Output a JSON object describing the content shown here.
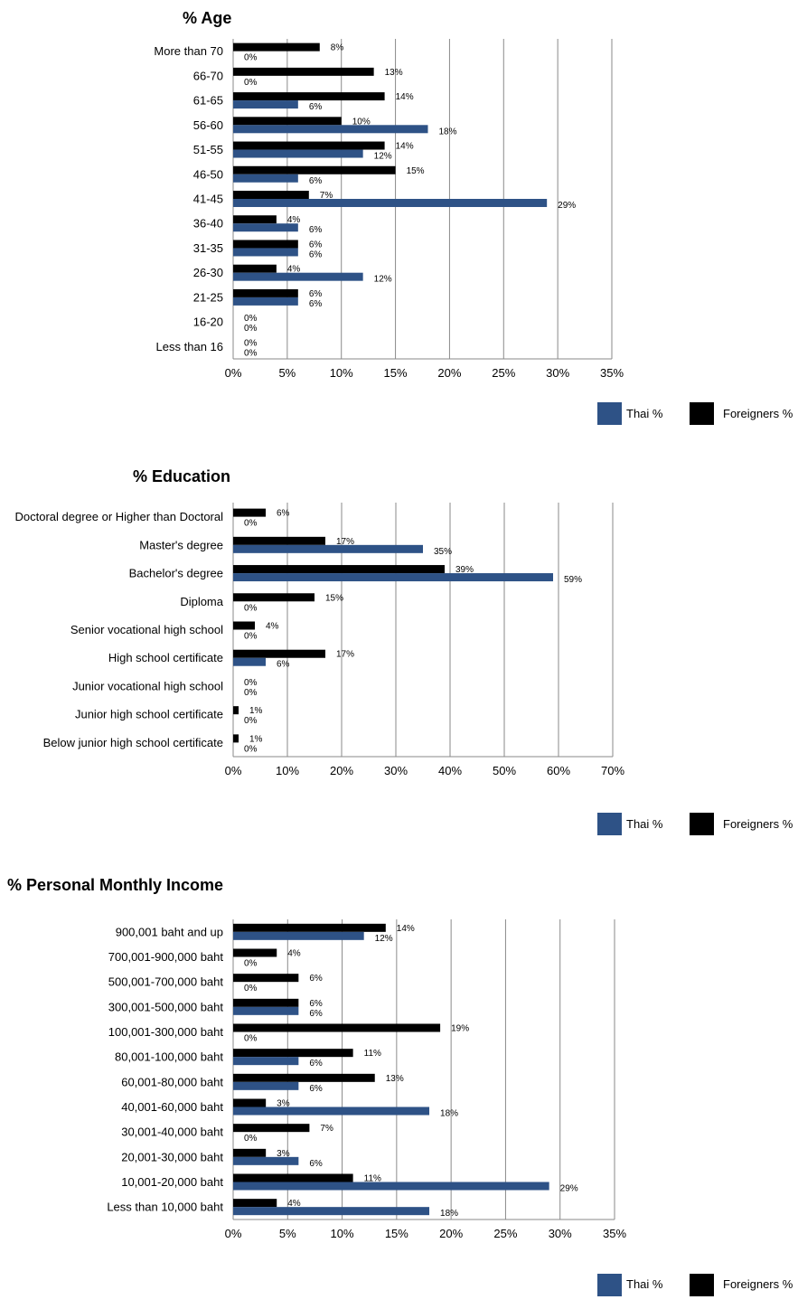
{
  "colors": {
    "thai": "#2e5286",
    "foreigners": "#000000",
    "grid": "#8a8a8a"
  },
  "legend": {
    "thai": "Thai %",
    "foreigners": "Foreigners %"
  },
  "chart_data": [
    {
      "type": "bar",
      "orientation": "horizontal",
      "title": "% Age",
      "categories": [
        "More than 70",
        "66-70",
        "61-65",
        "56-60",
        "51-55",
        "46-50",
        "41-45",
        "36-40",
        "31-35",
        "26-30",
        "21-25",
        "16-20",
        "Less than 16"
      ],
      "series": [
        {
          "name": "Foreigners %",
          "values": [
            8,
            13,
            14,
            10,
            14,
            15,
            7,
            4,
            6,
            4,
            6,
            0,
            0
          ]
        },
        {
          "name": "Thai %",
          "values": [
            0,
            0,
            6,
            18,
            12,
            6,
            29,
            6,
            6,
            12,
            6,
            0,
            0
          ]
        }
      ],
      "xlim": [
        0,
        35
      ],
      "xticks": [
        "0%",
        "5%",
        "10%",
        "15%",
        "20%",
        "25%",
        "30%",
        "35%"
      ],
      "value_format": "%",
      "legend_position": "bottom-right",
      "grid": true
    },
    {
      "type": "bar",
      "orientation": "horizontal",
      "title": "% Education",
      "categories": [
        "Doctoral degree or Higher than Doctoral",
        "Master's degree",
        "Bachelor's degree",
        "Diploma",
        "Senior vocational high school",
        "High school certificate",
        "Junior vocational high school",
        "Junior high school certificate",
        "Below junior high school certificate"
      ],
      "series": [
        {
          "name": "Foreigners %",
          "values": [
            6,
            17,
            39,
            15,
            4,
            17,
            0,
            1,
            1
          ]
        },
        {
          "name": "Thai %",
          "values": [
            0,
            35,
            59,
            0,
            0,
            6,
            0,
            0,
            0
          ]
        }
      ],
      "xlim": [
        0,
        70
      ],
      "xticks": [
        "0%",
        "10%",
        "20%",
        "30%",
        "40%",
        "50%",
        "60%",
        "70%"
      ],
      "value_format": "%",
      "legend_position": "bottom-right",
      "grid": true
    },
    {
      "type": "bar",
      "orientation": "horizontal",
      "title": "% Personal Monthly Income",
      "categories": [
        "900,001 baht and up",
        "700,001-900,000 baht",
        "500,001-700,000 baht",
        "300,001-500,000 baht",
        "100,001-300,000 baht",
        "80,001-100,000 baht",
        "60,001-80,000 baht",
        "40,001-60,000 baht",
        "30,001-40,000 baht",
        "20,001-30,000 baht",
        "10,001-20,000 baht",
        "Less than 10,000 baht"
      ],
      "series": [
        {
          "name": "Foreigners %",
          "values": [
            14,
            4,
            6,
            6,
            19,
            11,
            13,
            3,
            7,
            3,
            11,
            4
          ]
        },
        {
          "name": "Thai %",
          "values": [
            12,
            0,
            0,
            6,
            0,
            6,
            6,
            18,
            0,
            6,
            29,
            18
          ]
        }
      ],
      "xlim": [
        0,
        35
      ],
      "xticks": [
        "0%",
        "5%",
        "10%",
        "15%",
        "20%",
        "25%",
        "30%",
        "35%"
      ],
      "value_format": "%",
      "legend_position": "bottom-right",
      "grid": true
    }
  ]
}
